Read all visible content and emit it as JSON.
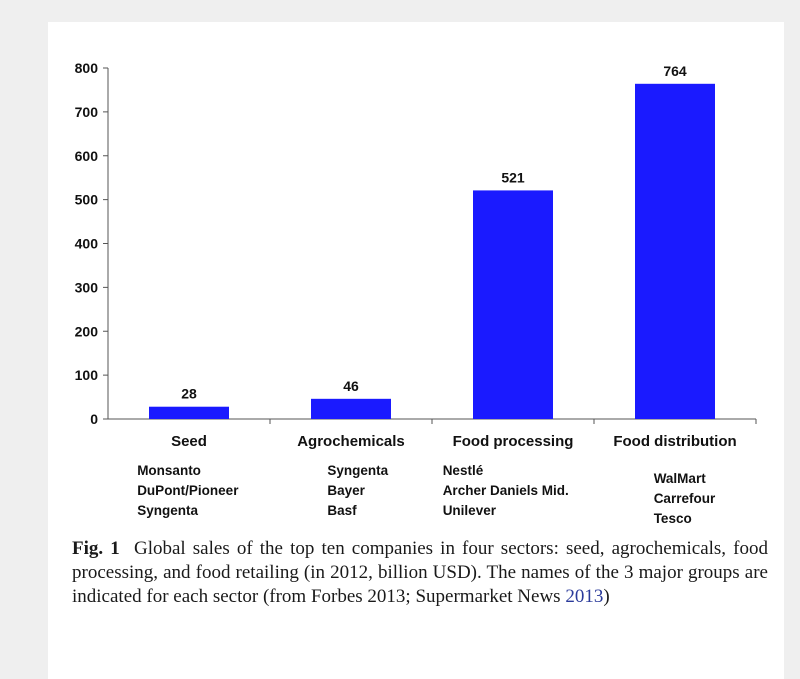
{
  "chart_data": {
    "type": "bar",
    "categories": [
      "Seed",
      "Agrochemicals",
      "Food processing",
      "Food distribution"
    ],
    "values": [
      28,
      46,
      521,
      764
    ],
    "data_labels": [
      "28",
      "46",
      "521",
      "764"
    ],
    "companies": [
      [
        "Monsanto",
        "DuPont/Pioneer",
        "Syngenta"
      ],
      [
        "Syngenta",
        "Bayer",
        "Basf"
      ],
      [
        "Nestlé",
        "Archer Daniels Mid.",
        "Unilever"
      ],
      [
        "WalMart",
        "Carrefour",
        "Tesco"
      ]
    ],
    "ylim": [
      0,
      800
    ],
    "yticks": [
      0,
      100,
      200,
      300,
      400,
      500,
      600,
      700,
      800
    ],
    "bar_color": "#1a1aff",
    "grid": false,
    "legend": "none"
  },
  "caption": {
    "label": "Fig. 1",
    "text": "Global sales of the top ten companies in four sectors: seed, agrochemicals, food processing, and food retailing (in 2012, billion USD). The names of the 3 major groups are indicated for each sector (from Forbes 2013; Supermarket News ",
    "link_text": "2013",
    "close": ")"
  }
}
